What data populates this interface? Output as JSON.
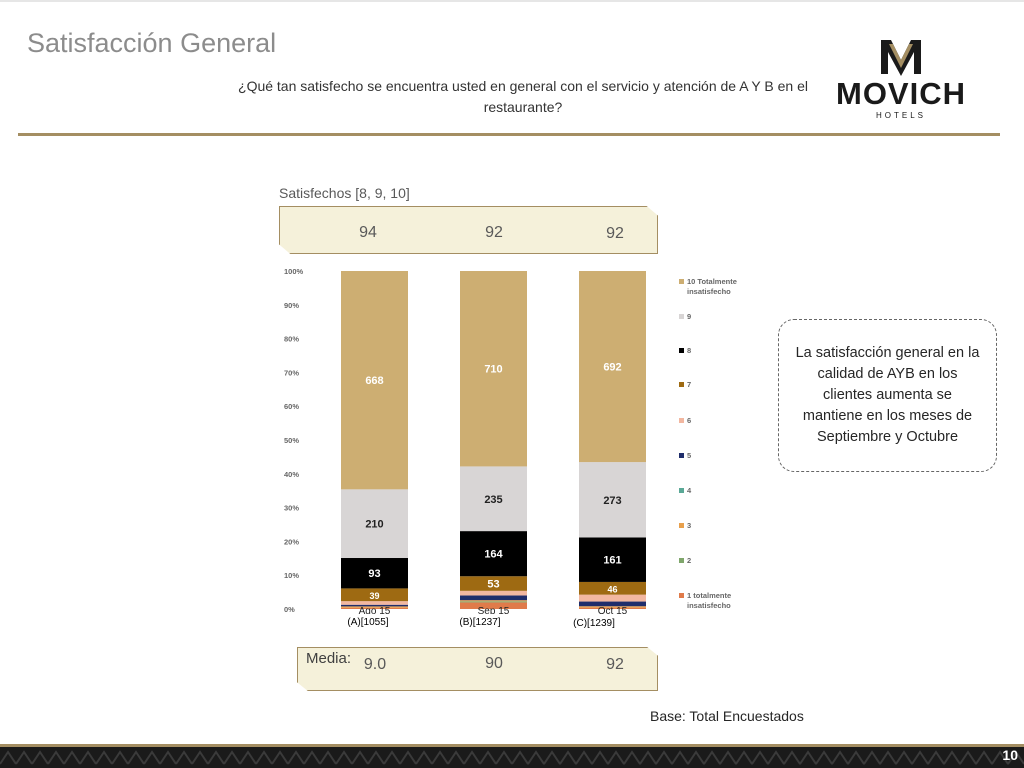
{
  "slide": {
    "title": "Satisfacción General",
    "question": "¿Qué tan satisfecho se encuentra usted en general con el servicio y atención de A Y B en el restaurante?",
    "logo_text": "MOVICH",
    "logo_subtext": "HOTELS",
    "page_number": "10",
    "base_note": "Base: Total Encuestados",
    "callout": "La satisfacción general en la calidad de AYB en los clientes aumenta se mantiene en los meses de Septiembre y Octubre"
  },
  "satisfied": {
    "label": "Satisfechos [8, 9, 10]",
    "values": [
      "94",
      "92",
      "92"
    ]
  },
  "media": {
    "label": "Media:",
    "values": [
      "9.0",
      "90",
      "92"
    ]
  },
  "colors": {
    "gold": "#a48e62",
    "panel_fill": "#f5f1da",
    "footer_dark": "#1a1a1a"
  },
  "chart_data": {
    "type": "bar",
    "stacked": true,
    "normalized": true,
    "yticks": [
      "100%",
      "90%",
      "80%",
      "70%",
      "60%",
      "50%",
      "40%",
      "30%",
      "20%",
      "10%",
      "0%"
    ],
    "categories": [
      "Ago 15",
      "Sep 15",
      "Oct 15"
    ],
    "base_labels": [
      "(A)[1055]",
      "(B)[1237]",
      "(C)[1239]"
    ],
    "series": [
      {
        "name": "1 totalmente insatisfecho",
        "color": "#e07b4a",
        "values": [
          4,
          24,
          5
        ]
      },
      {
        "name": "2",
        "color": "#7fa66b",
        "values": [
          0,
          4,
          0
        ]
      },
      {
        "name": "3",
        "color": "#e8a04c",
        "values": [
          4,
          4,
          5
        ]
      },
      {
        "name": "4",
        "color": "#5aa896",
        "values": [
          0,
          0,
          0
        ]
      },
      {
        "name": "5",
        "color": "#1f2d6b",
        "values": [
          5,
          17,
          17
        ]
      },
      {
        "name": "6",
        "color": "#f2b7a0",
        "values": [
          11,
          17,
          25
        ]
      },
      {
        "name": "7",
        "color": "#9e6a12",
        "values": [
          39,
          53,
          46
        ]
      },
      {
        "name": "8",
        "color": "#000000",
        "values": [
          93,
          164,
          161
        ]
      },
      {
        "name": "9",
        "color": "#d8d5d5",
        "values": [
          210,
          235,
          273
        ]
      },
      {
        "name": "10 Totalmente insatisfecho",
        "color": "#cdae72",
        "values": [
          668,
          710,
          692
        ]
      }
    ]
  }
}
